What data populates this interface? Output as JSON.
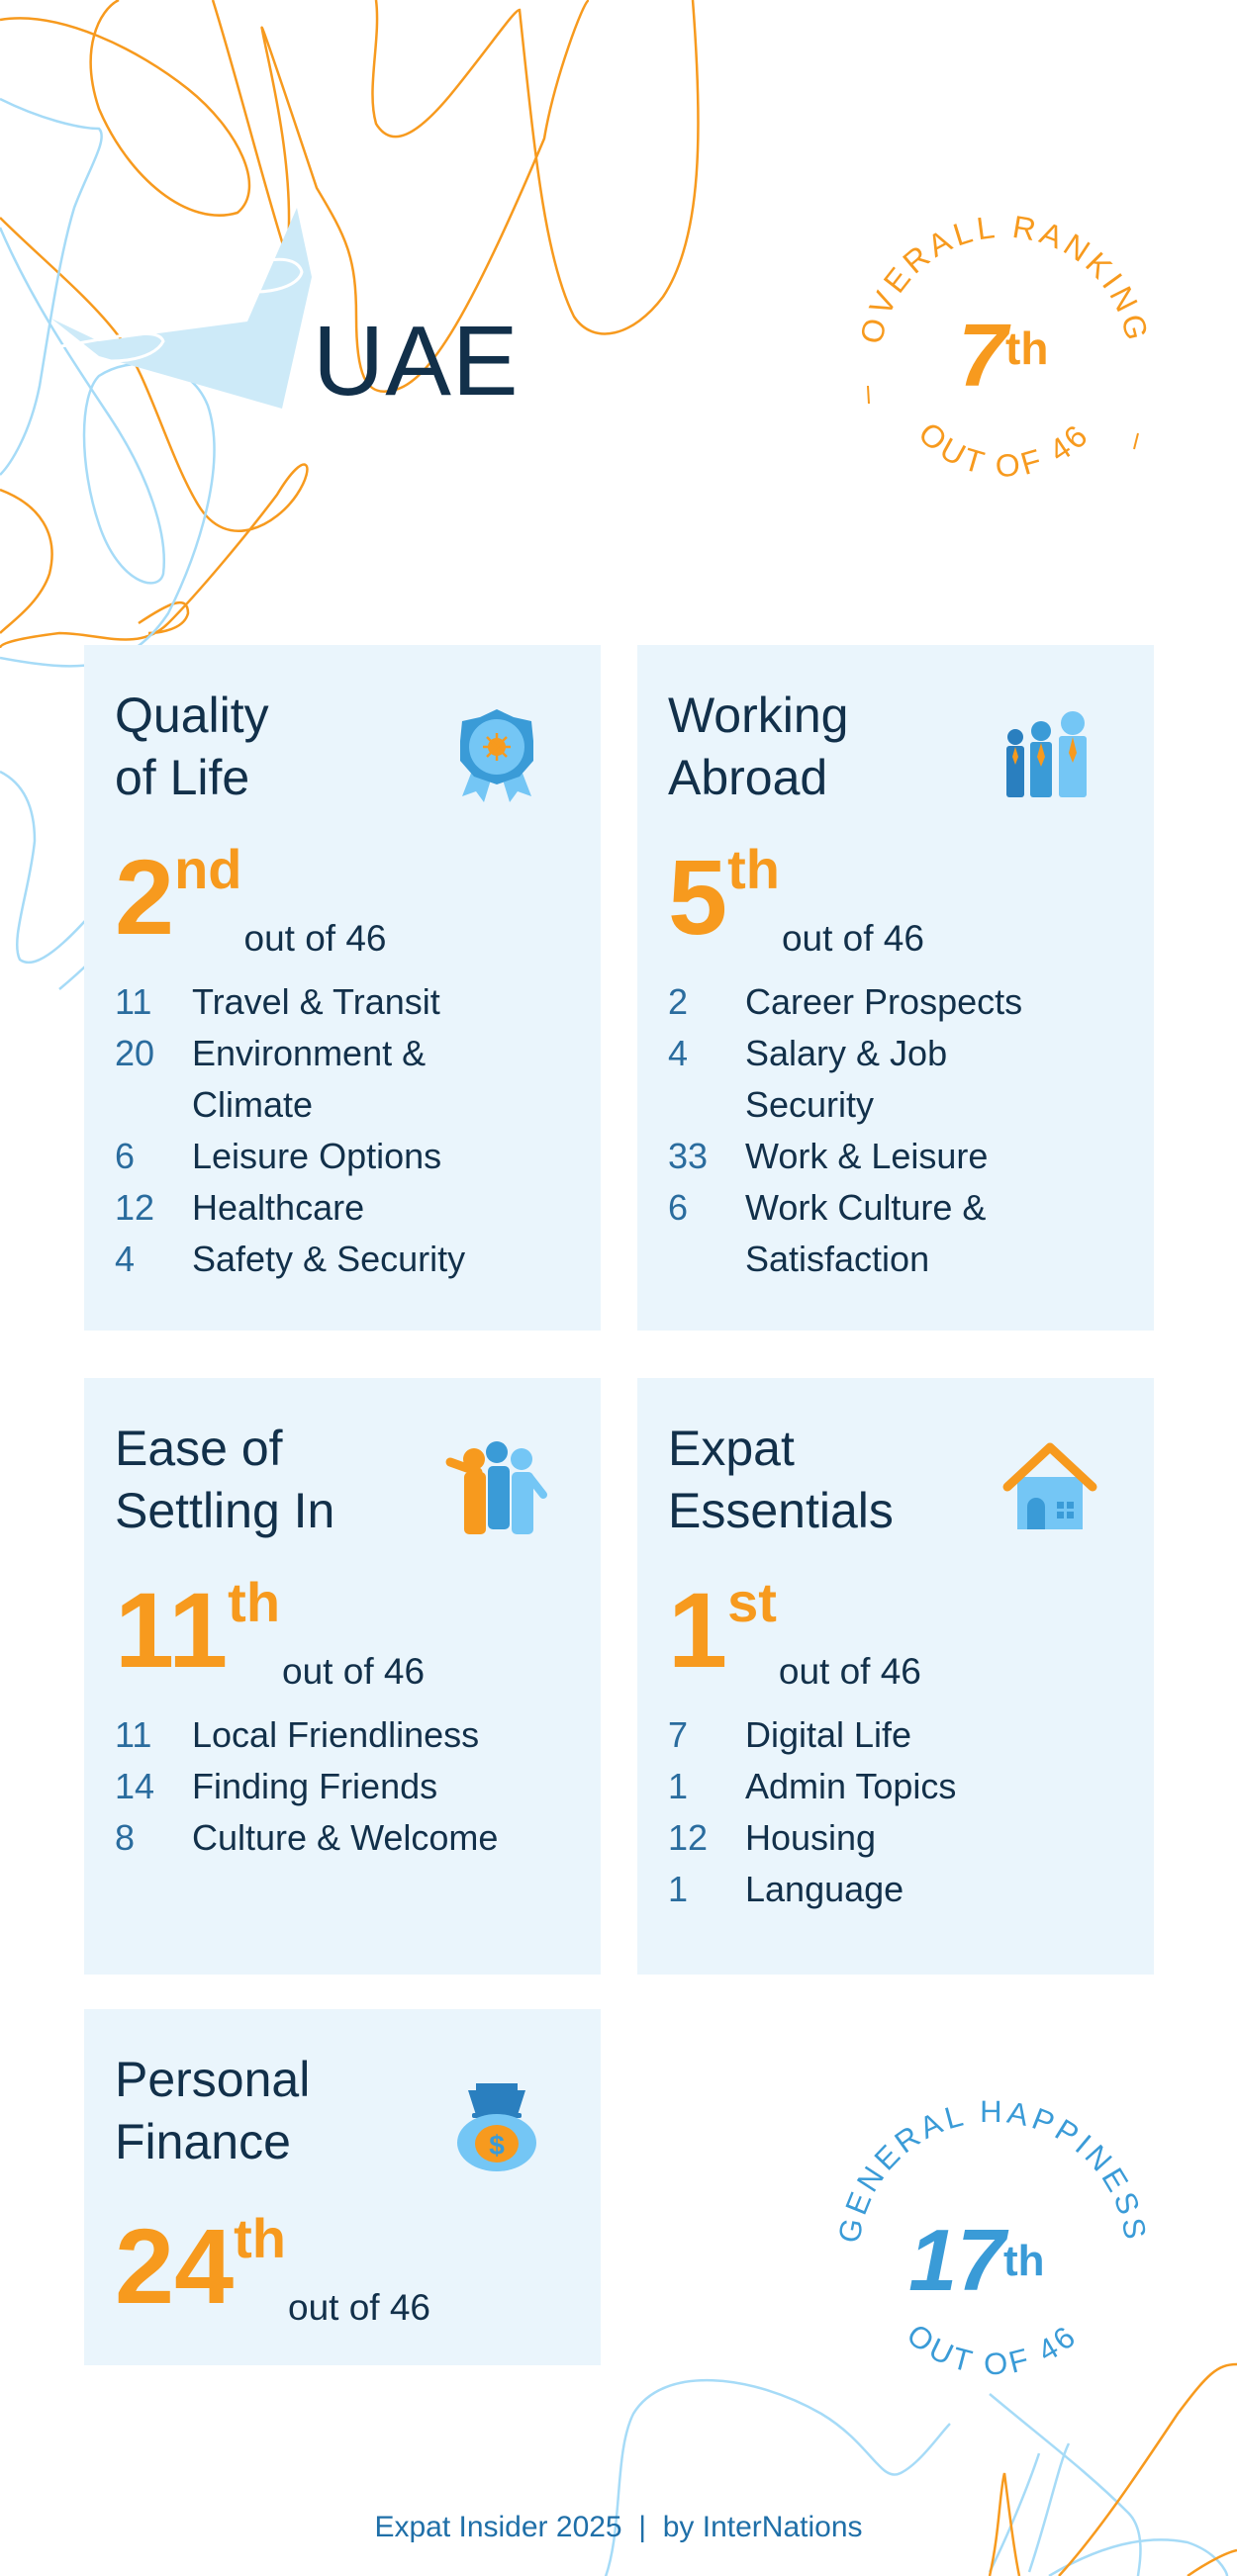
{
  "country": "UAE",
  "overall": {
    "label_top": "OVERALL RANKING",
    "label_bottom": "OUT OF 46",
    "rank": "7",
    "suffix": "th"
  },
  "happiness": {
    "label_top": "GENERAL HAPPINESS",
    "label_bottom": "OUT OF 46",
    "rank": "17",
    "suffix": "th"
  },
  "cards": [
    {
      "title1": "Quality",
      "title2": "of Life",
      "icon": "medal-icon",
      "rank": "2",
      "suffix": "nd",
      "out_of": "out of 46",
      "items": [
        {
          "n": "11",
          "label": "Travel & Transit"
        },
        {
          "n": "20",
          "label": "Environment &",
          "label2": "Climate"
        },
        {
          "n": "6",
          "label": "Leisure Options"
        },
        {
          "n": "12",
          "label": "Healthcare"
        },
        {
          "n": "4",
          "label": "Safety & Security"
        }
      ]
    },
    {
      "title1": "Working",
      "title2": "Abroad",
      "icon": "business-people-icon",
      "rank": "5",
      "suffix": "th",
      "out_of": "out of 46",
      "items": [
        {
          "n": "2",
          "label": "Career Prospects"
        },
        {
          "n": "4",
          "label": "Salary & Job",
          "label2": "Security"
        },
        {
          "n": "33",
          "label": "Work & Leisure"
        },
        {
          "n": "6",
          "label": "Work Culture &",
          "label2": "Satisfaction"
        }
      ]
    },
    {
      "title1": "Ease of",
      "title2": "Settling In",
      "icon": "friends-group-icon",
      "rank": "11",
      "suffix": "th",
      "out_of": "out of 46",
      "items": [
        {
          "n": "11",
          "label": "Local Friendliness"
        },
        {
          "n": "14",
          "label": "Finding Friends"
        },
        {
          "n": "8",
          "label": "Culture & Welcome"
        }
      ]
    },
    {
      "title1": "Expat",
      "title2": "Essentials",
      "icon": "house-icon",
      "rank": "1",
      "suffix": "st",
      "out_of": "out of 46",
      "items": [
        {
          "n": "7",
          "label": "Digital Life"
        },
        {
          "n": "1",
          "label": "Admin Topics"
        },
        {
          "n": "12",
          "label": "Housing"
        },
        {
          "n": "1",
          "label": "Language"
        }
      ]
    },
    {
      "title1": "Personal",
      "title2": "Finance",
      "icon": "money-bag-icon",
      "rank": "24",
      "suffix": "th",
      "out_of": "out of 46",
      "items": []
    }
  ],
  "footer": "Expat Insider 2025  |  by InterNations",
  "colors": {
    "orange": "#f79a1e",
    "navy": "#12304a",
    "blue": "#3a9bd7",
    "light_blue": "#74c6f5",
    "card_bg": "#eaf5fc"
  }
}
